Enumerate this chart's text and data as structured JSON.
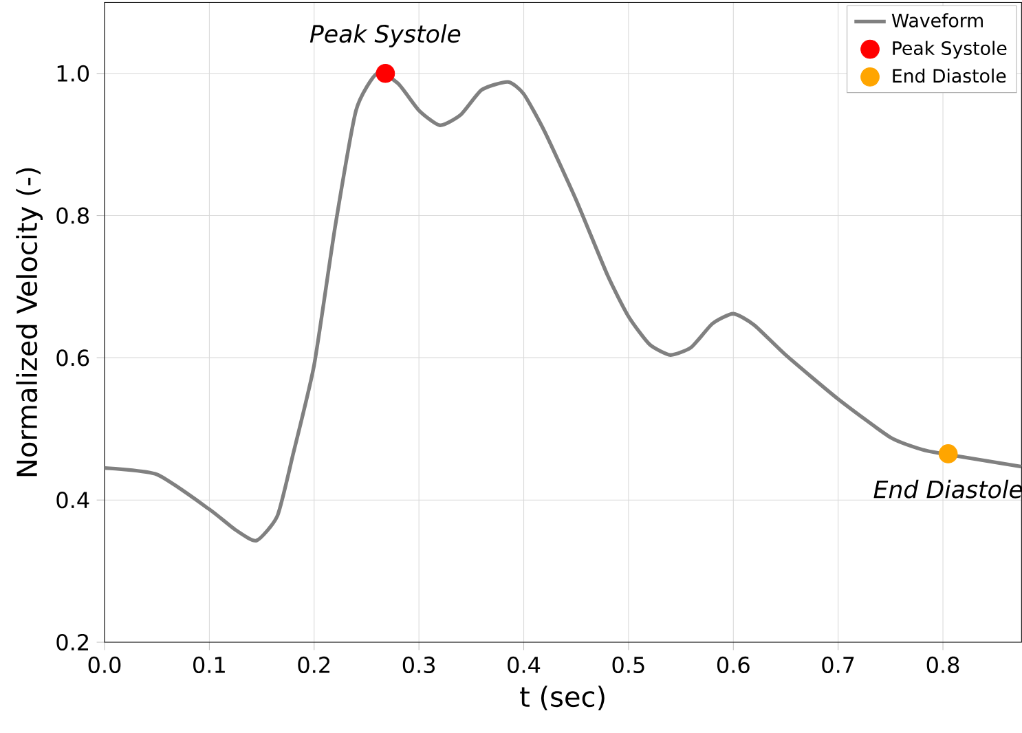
{
  "chart_data": {
    "type": "line",
    "xlabel": "t (sec)",
    "ylabel": "Normalized Velocity (-)",
    "xlim": [
      0,
      0.875
    ],
    "ylim": [
      0.2,
      1.1
    ],
    "xticks": [
      {
        "value": 0,
        "label": "0.0"
      },
      0.1,
      0.2,
      0.3,
      0.4,
      0.5,
      0.6,
      0.7,
      0.8
    ],
    "yticks": [
      0.2,
      0.4,
      0.6,
      0.8,
      {
        "value": 1,
        "label": "1.0"
      }
    ],
    "grid": true,
    "legend": "top right",
    "series": [
      {
        "name": "Waveform",
        "color": "#808080",
        "marker": "none",
        "x": [
          0,
          0.05,
          0.1,
          0.125,
          0.145,
          0.165,
          0.18,
          0.2,
          0.22,
          0.24,
          0.26,
          0.28,
          0.3,
          0.32,
          0.34,
          0.36,
          0.385,
          0.4,
          0.42,
          0.45,
          0.48,
          0.5,
          0.52,
          0.54,
          0.56,
          0.58,
          0.6,
          0.62,
          0.65,
          0.7,
          0.75,
          0.78,
          0.8,
          0.85,
          0.875
        ],
        "values": [
          0.445,
          0.436,
          0.387,
          0.358,
          0.343,
          0.378,
          0.465,
          0.59,
          0.784,
          0.948,
          1.0,
          0.986,
          0.948,
          0.927,
          0.942,
          0.977,
          0.988,
          0.971,
          0.918,
          0.822,
          0.716,
          0.658,
          0.619,
          0.604,
          0.615,
          0.648,
          0.662,
          0.646,
          0.604,
          0.542,
          0.488,
          0.471,
          0.465,
          0.453,
          0.447
        ]
      },
      {
        "name": "Peak Systole",
        "type": "scatter",
        "color": "#ff0000",
        "marker": "circle",
        "x": [
          0.268
        ],
        "values": [
          1.0
        ]
      },
      {
        "name": "End Diastole",
        "type": "scatter",
        "color": "#ffa500",
        "marker": "circle",
        "x": [
          0.805
        ],
        "values": [
          0.465
        ]
      }
    ],
    "annotations": [
      {
        "text": "Peak Systole",
        "x": 0.268,
        "y": 1.0
      },
      {
        "text": "End Diastole",
        "x": 0.805,
        "y": 0.465
      }
    ]
  }
}
